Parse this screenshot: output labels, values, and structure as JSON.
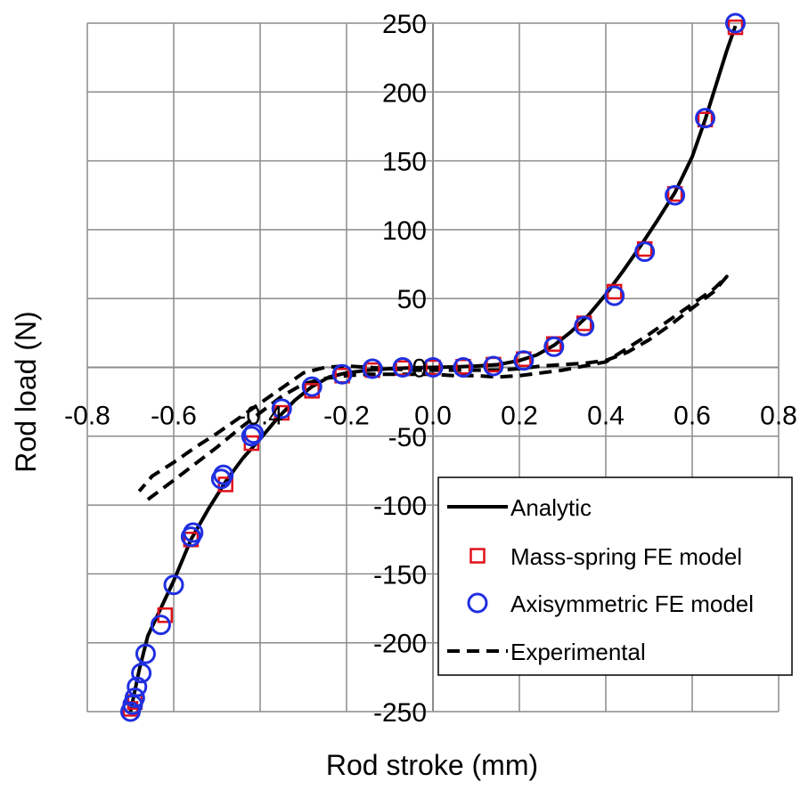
{
  "chart_data": {
    "type": "scatter",
    "title": "",
    "xlabel": "Rod stroke (mm)",
    "ylabel": "Rod load (N)",
    "xlim": [
      -0.8,
      0.8
    ],
    "ylim": [
      -250,
      250
    ],
    "x_ticks": [
      -0.8,
      -0.6,
      -0.4,
      -0.2,
      0.0,
      0.2,
      0.4,
      0.6,
      0.8
    ],
    "y_ticks": [
      -250,
      -200,
      -150,
      -100,
      -50,
      0,
      50,
      100,
      150,
      200,
      250
    ],
    "x_tick_labels": [
      "-0.8",
      "-0.6",
      "-0.4",
      "-0.2",
      "0.0",
      "0.2",
      "0.4",
      "0.6",
      "0.8"
    ],
    "y_tick_labels": [
      "-250",
      "-200",
      "-150",
      "-100",
      "-50",
      "0",
      "50",
      "100",
      "150",
      "200",
      "250"
    ],
    "grid": true,
    "legend_position": "bottom-right",
    "series": [
      {
        "name": "Analytic",
        "kind": "line",
        "style": "solid",
        "color": "#000000",
        "x": [
          -0.7,
          -0.68,
          -0.66,
          -0.63,
          -0.6,
          -0.56,
          -0.52,
          -0.48,
          -0.44,
          -0.4,
          -0.36,
          -0.32,
          -0.28,
          -0.24,
          -0.2,
          -0.15,
          -0.1,
          -0.05,
          0.0,
          0.05,
          0.1,
          0.15,
          0.2,
          0.24,
          0.28,
          0.32,
          0.36,
          0.4,
          0.44,
          0.48,
          0.52,
          0.56,
          0.6,
          0.63,
          0.66,
          0.68,
          0.7
        ],
        "y": [
          -250,
          -220,
          -195,
          -175,
          -155,
          -125,
          -103,
          -83,
          -66,
          -52,
          -37,
          -24,
          -14,
          -7,
          -4,
          -2,
          -1,
          -0.3,
          0,
          0.3,
          1,
          2,
          5,
          9,
          16,
          26,
          38,
          53,
          70,
          88,
          107,
          127,
          153,
          180,
          210,
          230,
          248
        ]
      },
      {
        "name": "Mass-spring FE model",
        "kind": "marker",
        "marker": "square",
        "color": "#e0101a",
        "x": [
          -0.7,
          -0.69,
          -0.62,
          -0.56,
          -0.48,
          -0.42,
          -0.35,
          -0.28,
          -0.21,
          -0.14,
          -0.07,
          0.0,
          0.07,
          0.14,
          0.21,
          0.28,
          0.35,
          0.42,
          0.49,
          0.56,
          0.63,
          0.7
        ],
        "y": [
          -248,
          -243,
          -180,
          -125,
          -85,
          -55,
          -33,
          -17,
          -6,
          -2,
          -0.5,
          0,
          0.5,
          2,
          6,
          17,
          32,
          55,
          86,
          126,
          180,
          247
        ]
      },
      {
        "name": "Axisymmetric FE model",
        "kind": "marker",
        "marker": "circle",
        "color": "#1f2fe0",
        "x": [
          -0.7,
          -0.695,
          -0.69,
          -0.685,
          -0.675,
          -0.665,
          -0.63,
          -0.6,
          -0.56,
          -0.555,
          -0.49,
          -0.485,
          -0.42,
          -0.415,
          -0.35,
          -0.28,
          -0.21,
          -0.14,
          -0.07,
          0.0,
          0.07,
          0.14,
          0.21,
          0.28,
          0.35,
          0.42,
          0.49,
          0.56,
          0.63,
          0.7
        ],
        "y": [
          -250,
          -245,
          -240,
          -232,
          -222,
          -208,
          -187,
          -158,
          -123,
          -120,
          -81,
          -78,
          -50,
          -48,
          -30,
          -14,
          -5,
          -1,
          0,
          0,
          0,
          1,
          5,
          15,
          30,
          52,
          84,
          125,
          181,
          250
        ]
      },
      {
        "name": "Experimental",
        "kind": "line",
        "style": "dashed",
        "color": "#000000",
        "x": [
          -0.66,
          -0.6,
          -0.55,
          -0.5,
          -0.45,
          -0.4,
          -0.35,
          -0.3,
          -0.25,
          -0.2,
          -0.15,
          -0.1,
          -0.05,
          0.0,
          0.05,
          0.1,
          0.15,
          0.2,
          0.25,
          0.3,
          0.35,
          0.4,
          0.45,
          0.5,
          0.55,
          0.6,
          0.65,
          0.68,
          0.65,
          0.6,
          0.55,
          0.5,
          0.45,
          0.4,
          0.35,
          0.3,
          0.25,
          0.2,
          0.15,
          0.1,
          0.05,
          0.0,
          -0.05,
          -0.1,
          -0.15,
          -0.2,
          -0.25,
          -0.3,
          -0.35,
          -0.4,
          -0.45,
          -0.5,
          -0.55,
          -0.6,
          -0.65,
          -0.68
        ],
        "y": [
          -96,
          -82,
          -70,
          -58,
          -45,
          -33,
          -21,
          -12,
          -8,
          -6,
          -5,
          -5,
          -5,
          -5,
          -6,
          -6,
          -7,
          -6,
          -4,
          -2,
          1,
          4,
          14,
          24,
          35,
          46,
          57,
          66,
          55,
          43,
          31,
          20,
          11,
          5,
          3,
          2,
          1,
          -1,
          -2,
          -2,
          -2,
          -2,
          -2,
          -1,
          0,
          1,
          0,
          -4,
          -15,
          -26,
          -37,
          -48,
          -58,
          -69,
          -79,
          -90
        ]
      }
    ]
  }
}
